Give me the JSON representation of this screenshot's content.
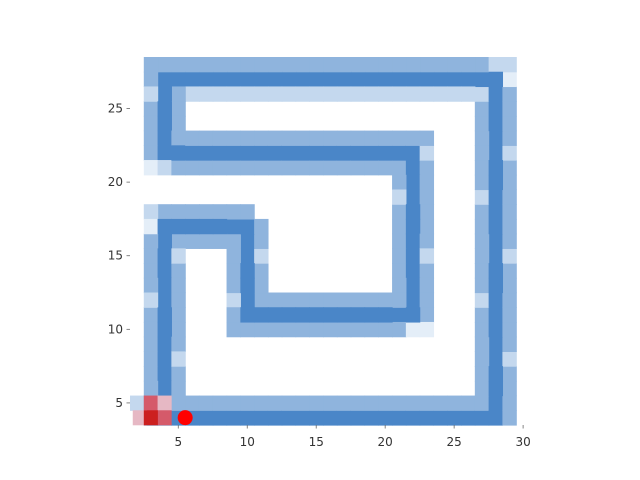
{
  "chart_data": {
    "type": "heatmap",
    "title": "",
    "xlabel": "",
    "ylabel": "",
    "xlim": [
      1.5,
      30.5
    ],
    "ylim": [
      3.5,
      28.5
    ],
    "x_ticks": [
      5,
      10,
      15,
      20,
      25,
      30
    ],
    "y_ticks": [
      5,
      10,
      15,
      20,
      25
    ],
    "grid": false,
    "colors": {
      "track": "#4a86c8",
      "track_mid": "#8fb4dd",
      "track_light": "#c4d8ee",
      "track_faint": "#e4eef8",
      "start_marker": "#cc1f1f",
      "start_mid": "#d55a6a",
      "start_light": "#e6b8c4",
      "agent": "#ff0000",
      "tick_text": "#333333"
    },
    "track_path": [
      [
        3,
        4
      ],
      [
        28,
        4
      ],
      [
        28,
        27
      ],
      [
        4,
        27
      ],
      [
        4,
        22
      ],
      [
        22,
        22
      ],
      [
        22,
        11
      ],
      [
        10,
        11
      ],
      [
        10,
        17
      ],
      [
        4,
        17
      ],
      [
        4,
        4
      ]
    ],
    "start_marker": [
      3,
      4
    ],
    "agent_position": [
      5.5,
      4
    ]
  }
}
